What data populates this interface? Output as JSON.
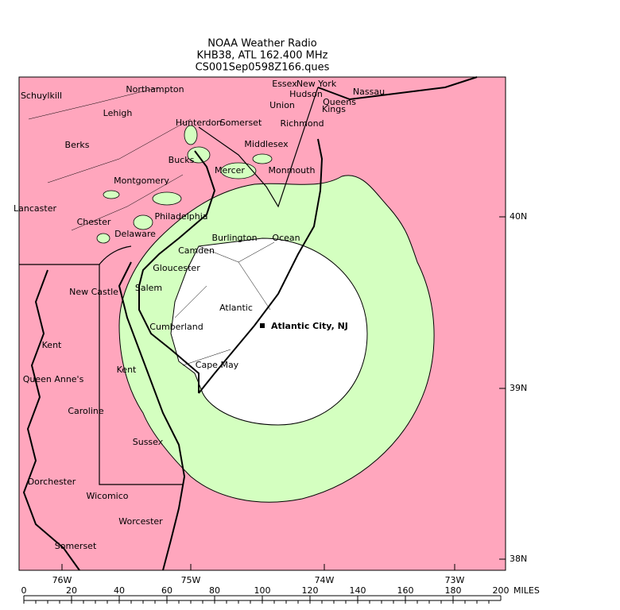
{
  "header": {
    "lines": [
      "NOAA Weather Radio",
      "KHB38, ATL 162.400 MHz",
      "CS001Sep0598Z166.ques"
    ]
  },
  "map": {
    "station": "Atlantic City, NJ",
    "places": [
      "Schuylkill",
      "Northampton",
      "Essex",
      "New York",
      "Nassau",
      "Hudson",
      "Union",
      "Queens",
      "Kings",
      "Lehigh",
      "Hunterdon",
      "Somerset",
      "Richmond",
      "Berks",
      "Middlesex",
      "Bucks",
      "Mercer",
      "Monmouth",
      "Montgomery",
      "Lancaster",
      "Philadelphia",
      "Chester",
      "Burlington",
      "Ocean",
      "Delaware",
      "Camden",
      "Gloucester",
      "New Castle",
      "Salem",
      "Atlantic",
      "Cumberland",
      "Kent",
      "Kent",
      "Cape May",
      "Queen Anne's",
      "Caroline",
      "Sussex",
      "Dorchester",
      "Wicomico",
      "Worcester",
      "Somerset"
    ],
    "latitudes": [
      "40N",
      "39N",
      "38N"
    ],
    "longitudes": [
      "76W",
      "75W",
      "74W",
      "73W"
    ]
  },
  "scale": {
    "ticks": [
      0,
      20,
      40,
      60,
      80,
      100,
      120,
      140,
      160,
      180,
      200
    ],
    "unit": "MILES"
  }
}
